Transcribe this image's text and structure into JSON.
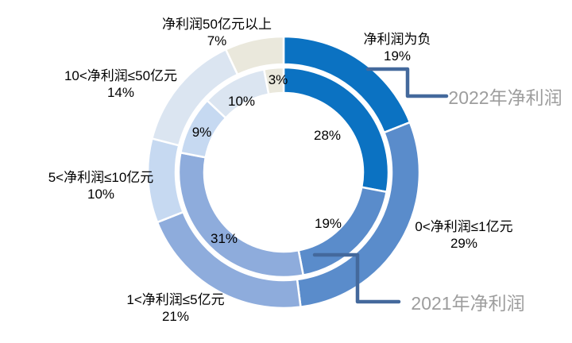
{
  "chart_data": {
    "type": "donut",
    "title": "",
    "categories": [
      "净利润为负",
      "0<净利润≤1亿元",
      "1<净利润≤5亿元",
      "5<净利润≤10亿元",
      "10<净利润≤50亿元",
      "净利润50亿元以上"
    ],
    "series": [
      {
        "name": "2022年净利润",
        "ring": "outer",
        "values": [
          19,
          29,
          21,
          10,
          14,
          7
        ]
      },
      {
        "name": "2021年净利润",
        "ring": "inner",
        "values": [
          28,
          19,
          31,
          9,
          10,
          3
        ]
      }
    ],
    "unit": "%",
    "segment_colors": [
      "#0B72C2",
      "#5A8CCB",
      "#8EACDC",
      "#C6D9F1",
      "#DBE5F1",
      "#EAE8DC"
    ],
    "start_angle_deg": 0,
    "direction": "clockwise",
    "legend_position": "none",
    "grid": false
  },
  "labels": {
    "outer_pcts": [
      "19%",
      "29%",
      "21%",
      "10%",
      "14%",
      "7%"
    ],
    "inner_pcts": [
      "28%",
      "19%",
      "31%",
      "9%",
      "10%",
      "3%"
    ],
    "callout_2022": "2022年净利润",
    "callout_2021": "2021年净利润"
  },
  "colors": {
    "callout_line": "#44699C",
    "callout_text": "#9D9D9D",
    "label_text": "#000000",
    "separator": "#FFFFFF",
    "background": "#FFFFFF"
  }
}
